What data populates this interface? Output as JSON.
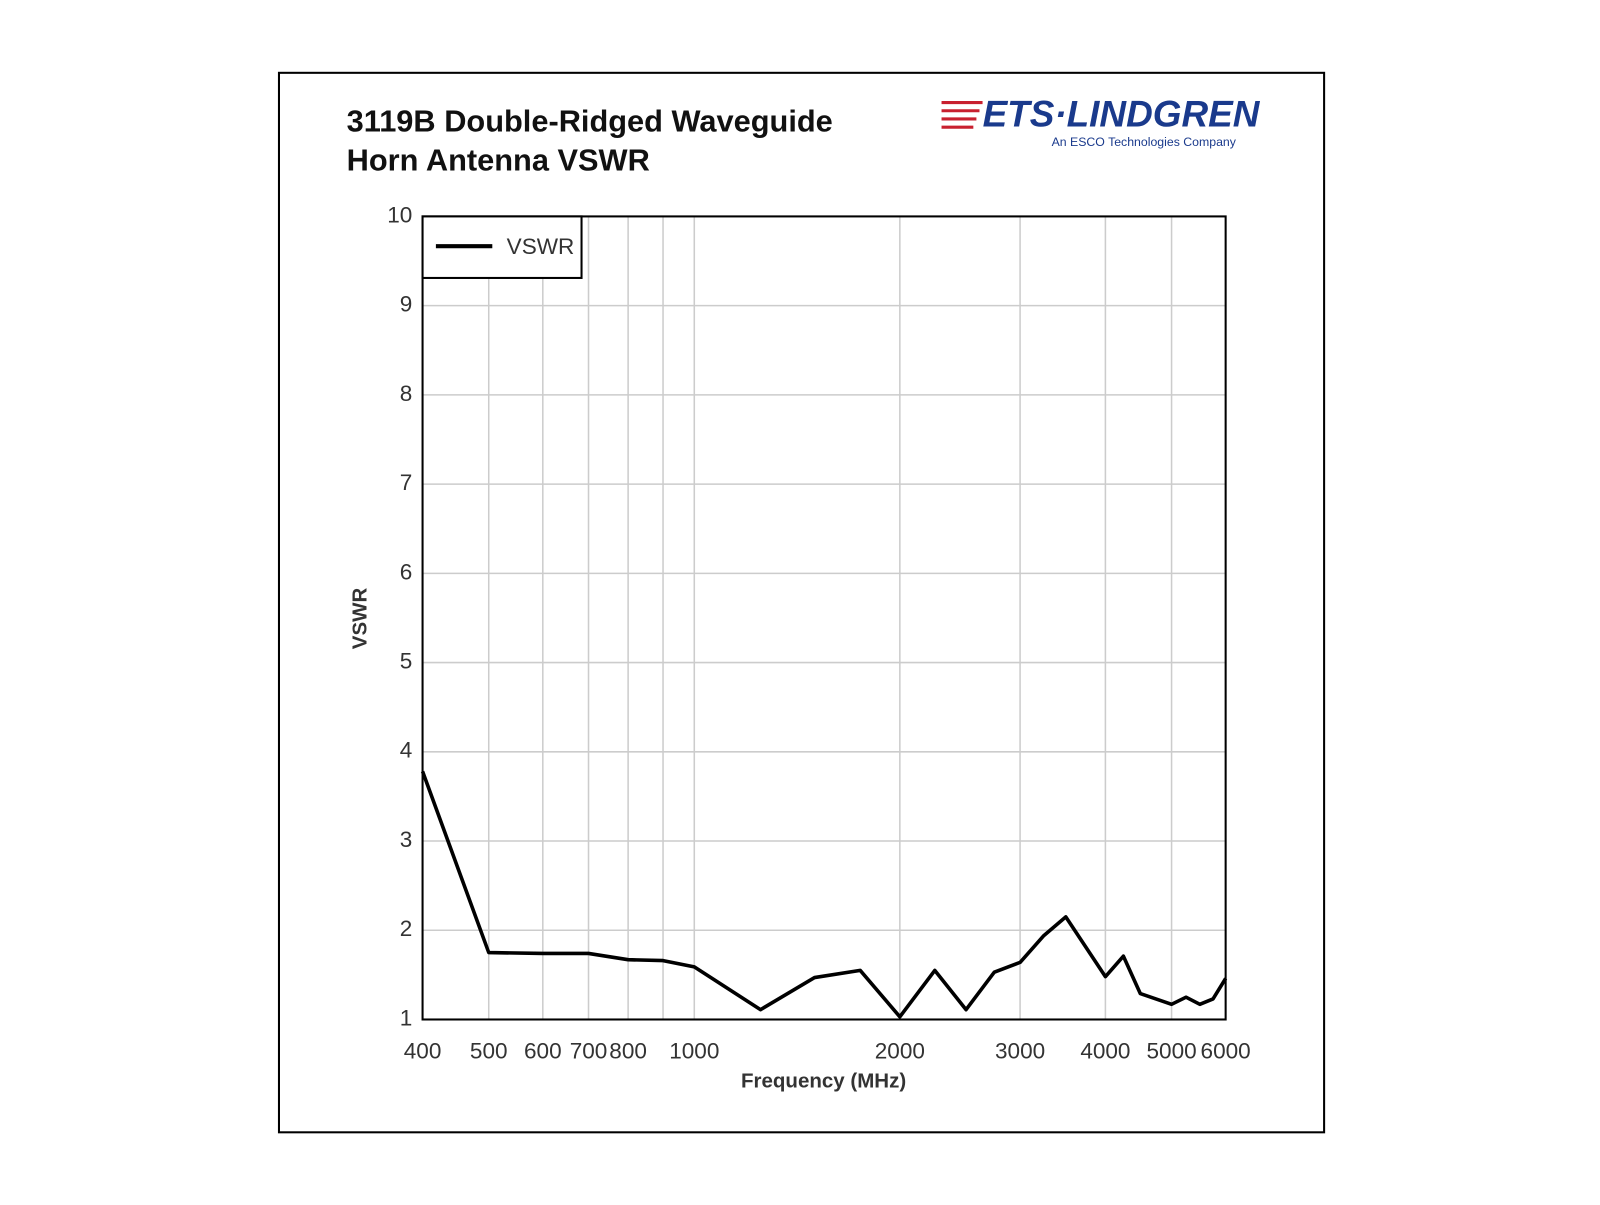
{
  "chart_data": {
    "type": "line",
    "title": "3119B Double-Ridged Waveguide Horn Antenna VSWR",
    "xlabel": "Frequency (MHz)",
    "ylabel": "VSWR",
    "x": [
      400,
      500,
      600,
      700,
      800,
      900,
      1000,
      1250,
      1500,
      1750,
      2000,
      2250,
      2500,
      2750,
      3000,
      3250,
      3500,
      4000,
      4250,
      4500,
      5000,
      5250,
      5500,
      5750,
      6000
    ],
    "series": [
      {
        "name": "VSWR",
        "color": "#000000",
        "values": [
          3.78,
          1.75,
          1.74,
          1.74,
          1.67,
          1.66,
          1.59,
          1.11,
          1.47,
          1.55,
          1.03,
          1.55,
          1.11,
          1.53,
          1.64,
          1.94,
          2.15,
          1.48,
          1.71,
          1.29,
          1.17,
          1.25,
          1.17,
          1.23,
          1.46
        ]
      }
    ],
    "xscale": "log",
    "xlim": [
      400,
      6000
    ],
    "xticks": [
      400,
      500,
      600,
      700,
      800,
      1000,
      2000,
      3000,
      4000,
      5000,
      6000
    ],
    "xminor": [
      900
    ],
    "ylim": [
      1,
      10
    ],
    "yticks": [
      1,
      2,
      3,
      4,
      5,
      6,
      7,
      8,
      9,
      10
    ],
    "grid": true,
    "legend": "upper left"
  },
  "logo": {
    "name": "ETS·LINDGREN",
    "tagline": "An ESCO Technologies Company"
  }
}
